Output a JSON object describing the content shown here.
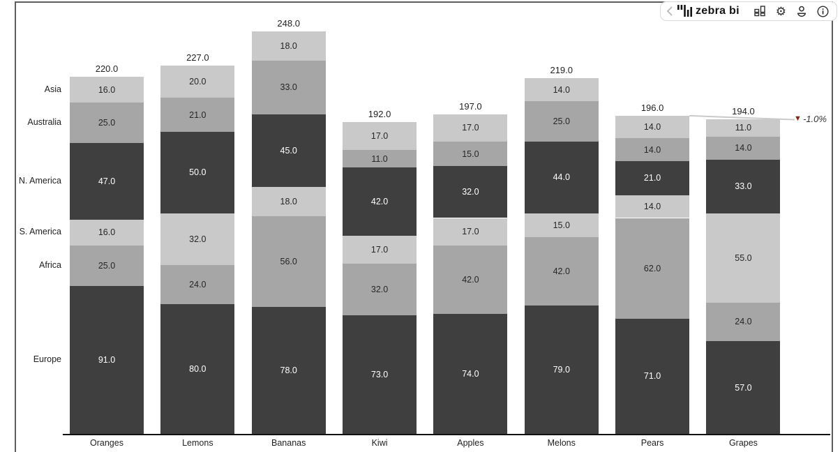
{
  "toolbar": {
    "logo_text": "zebra bi",
    "icons": [
      "chevron-left",
      "zebra-logo",
      "small-multiples",
      "settings",
      "account",
      "info"
    ]
  },
  "chart_data": {
    "type": "bar",
    "stacked": true,
    "stack_order_top_to_bottom": [
      "Asia",
      "Australia",
      "N. America",
      "S. America",
      "Africa",
      "Europe"
    ],
    "categories": [
      "Oranges",
      "Lemons",
      "Bananas",
      "Kiwi",
      "Apples",
      "Melons",
      "Pears",
      "Grapes"
    ],
    "series": [
      {
        "name": "Asia",
        "color": "#c9c9c9",
        "label_color": "#262626",
        "values": [
          16,
          20,
          18,
          17,
          17,
          14,
          14,
          11
        ]
      },
      {
        "name": "Australia",
        "color": "#a6a6a6",
        "label_color": "#262626",
        "values": [
          25,
          21,
          33,
          11,
          15,
          25,
          14,
          14
        ]
      },
      {
        "name": "N. America",
        "color": "#3f3f3f",
        "label_color": "#ffffff",
        "values": [
          47,
          50,
          45,
          42,
          32,
          44,
          21,
          33
        ]
      },
      {
        "name": "S. America",
        "color": "#c9c9c9",
        "label_color": "#262626",
        "values": [
          16,
          32,
          18,
          17,
          17,
          15,
          14,
          55
        ]
      },
      {
        "name": "Africa",
        "color": "#a6a6a6",
        "label_color": "#262626",
        "values": [
          25,
          24,
          56,
          32,
          42,
          42,
          62,
          24
        ]
      },
      {
        "name": "Europe",
        "color": "#3f3f3f",
        "label_color": "#ffffff",
        "values": [
          91,
          80,
          78,
          73,
          74,
          79,
          71,
          57
        ]
      }
    ],
    "totals": [
      220.0,
      227.0,
      248.0,
      192.0,
      197.0,
      219.0,
      196.0,
      194.0
    ],
    "value_decimals": 1,
    "legend_position": "left",
    "grid": false,
    "variance": {
      "label": "-1.0%",
      "marker": "▼",
      "marker_color": "#8b2310",
      "line_color": "#c9c9c9",
      "from_category": "Pears",
      "to_category": "Grapes"
    }
  }
}
